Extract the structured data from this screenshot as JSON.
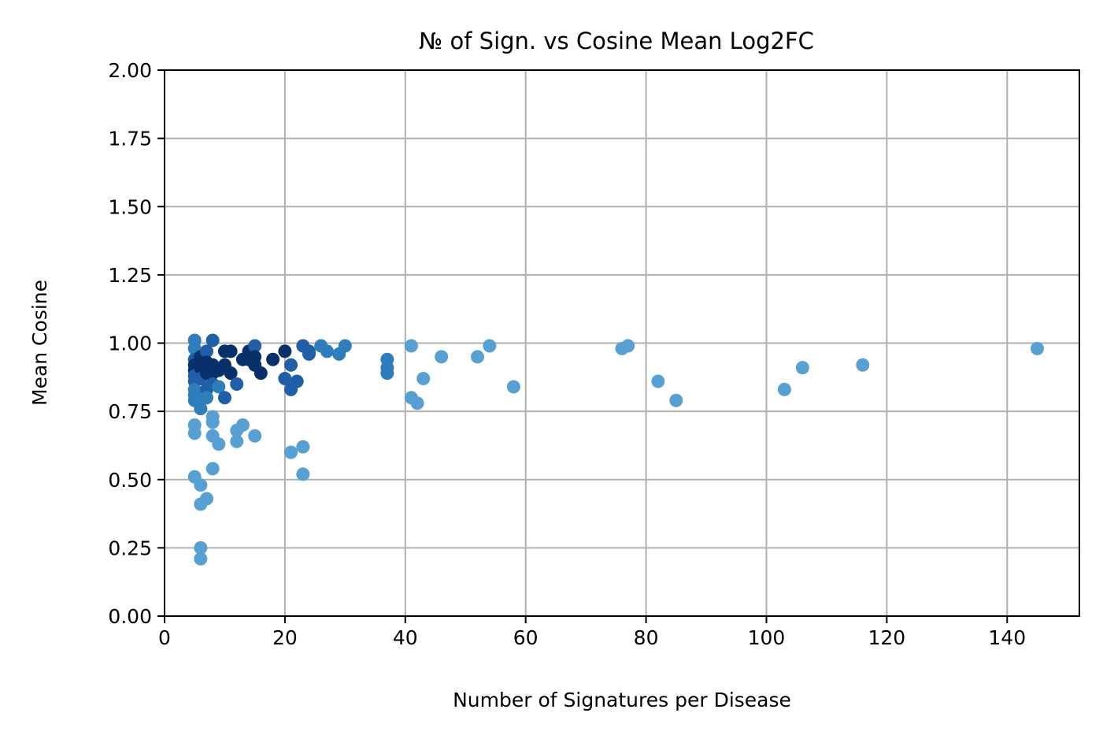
{
  "chart_data": {
    "type": "scatter",
    "title": "№ of Sign. vs Cosine Mean Log2FC",
    "xlabel": "Number of Signatures per Disease",
    "ylabel": "Mean Cosine",
    "xlim": [
      0,
      152
    ],
    "ylim": [
      0,
      2
    ],
    "xticks": [
      0,
      20,
      40,
      60,
      80,
      100,
      120,
      140
    ],
    "yticks": [
      0,
      0.25,
      0.5,
      0.75,
      1.0,
      1.25,
      1.5,
      1.75,
      2.0
    ],
    "ytick_labels": [
      "0.00",
      "0.25",
      "0.50",
      "0.75",
      "1.00",
      "1.25",
      "1.50",
      "1.75",
      "2.00"
    ],
    "grid": true,
    "colors": {
      "dark": "#08306b",
      "mid": "#1f5fa8",
      "medium": "#2e7ebc",
      "light": "#56a0d3"
    },
    "points": [
      {
        "x": 5,
        "y": 1.01,
        "c": "medium"
      },
      {
        "x": 5,
        "y": 0.98,
        "c": "medium"
      },
      {
        "x": 5,
        "y": 0.94,
        "c": "mid"
      },
      {
        "x": 5,
        "y": 0.92,
        "c": "dark"
      },
      {
        "x": 5,
        "y": 0.9,
        "c": "dark"
      },
      {
        "x": 5,
        "y": 0.88,
        "c": "mid"
      },
      {
        "x": 5,
        "y": 0.86,
        "c": "mid"
      },
      {
        "x": 5,
        "y": 0.83,
        "c": "medium"
      },
      {
        "x": 5,
        "y": 0.81,
        "c": "medium"
      },
      {
        "x": 5,
        "y": 0.79,
        "c": "medium"
      },
      {
        "x": 5,
        "y": 0.7,
        "c": "light"
      },
      {
        "x": 5,
        "y": 0.67,
        "c": "light"
      },
      {
        "x": 5,
        "y": 0.51,
        "c": "light"
      },
      {
        "x": 6,
        "y": 0.95,
        "c": "dark"
      },
      {
        "x": 6,
        "y": 0.91,
        "c": "dark"
      },
      {
        "x": 6,
        "y": 0.87,
        "c": "mid"
      },
      {
        "x": 6,
        "y": 0.76,
        "c": "medium"
      },
      {
        "x": 6,
        "y": 0.48,
        "c": "light"
      },
      {
        "x": 6,
        "y": 0.41,
        "c": "light"
      },
      {
        "x": 6,
        "y": 0.25,
        "c": "light"
      },
      {
        "x": 6,
        "y": 0.21,
        "c": "light"
      },
      {
        "x": 7,
        "y": 0.97,
        "c": "mid"
      },
      {
        "x": 7,
        "y": 0.93,
        "c": "dark"
      },
      {
        "x": 7,
        "y": 0.89,
        "c": "dark"
      },
      {
        "x": 7,
        "y": 0.83,
        "c": "mid"
      },
      {
        "x": 7,
        "y": 0.8,
        "c": "medium"
      },
      {
        "x": 7,
        "y": 0.43,
        "c": "light"
      },
      {
        "x": 8,
        "y": 1.01,
        "c": "mid"
      },
      {
        "x": 8,
        "y": 0.92,
        "c": "dark"
      },
      {
        "x": 8,
        "y": 0.89,
        "c": "dark"
      },
      {
        "x": 8,
        "y": 0.85,
        "c": "mid"
      },
      {
        "x": 8,
        "y": 0.73,
        "c": "light"
      },
      {
        "x": 8,
        "y": 0.71,
        "c": "light"
      },
      {
        "x": 8,
        "y": 0.66,
        "c": "light"
      },
      {
        "x": 8,
        "y": 0.54,
        "c": "light"
      },
      {
        "x": 9,
        "y": 0.9,
        "c": "dark"
      },
      {
        "x": 9,
        "y": 0.84,
        "c": "medium"
      },
      {
        "x": 9,
        "y": 0.63,
        "c": "light"
      },
      {
        "x": 10,
        "y": 0.97,
        "c": "dark"
      },
      {
        "x": 10,
        "y": 0.92,
        "c": "dark"
      },
      {
        "x": 10,
        "y": 0.8,
        "c": "mid"
      },
      {
        "x": 11,
        "y": 0.97,
        "c": "dark"
      },
      {
        "x": 11,
        "y": 0.89,
        "c": "dark"
      },
      {
        "x": 12,
        "y": 0.85,
        "c": "mid"
      },
      {
        "x": 12,
        "y": 0.68,
        "c": "light"
      },
      {
        "x": 12,
        "y": 0.64,
        "c": "light"
      },
      {
        "x": 13,
        "y": 0.94,
        "c": "dark"
      },
      {
        "x": 13,
        "y": 0.7,
        "c": "light"
      },
      {
        "x": 14,
        "y": 0.97,
        "c": "dark"
      },
      {
        "x": 14,
        "y": 0.94,
        "c": "dark"
      },
      {
        "x": 15,
        "y": 0.99,
        "c": "mid"
      },
      {
        "x": 15,
        "y": 0.95,
        "c": "dark"
      },
      {
        "x": 15,
        "y": 0.92,
        "c": "dark"
      },
      {
        "x": 15,
        "y": 0.66,
        "c": "light"
      },
      {
        "x": 16,
        "y": 0.89,
        "c": "dark"
      },
      {
        "x": 18,
        "y": 0.94,
        "c": "dark"
      },
      {
        "x": 20,
        "y": 0.97,
        "c": "dark"
      },
      {
        "x": 20,
        "y": 0.87,
        "c": "mid"
      },
      {
        "x": 21,
        "y": 0.92,
        "c": "mid"
      },
      {
        "x": 21,
        "y": 0.83,
        "c": "mid"
      },
      {
        "x": 21,
        "y": 0.6,
        "c": "light"
      },
      {
        "x": 22,
        "y": 0.86,
        "c": "mid"
      },
      {
        "x": 23,
        "y": 0.99,
        "c": "mid"
      },
      {
        "x": 23,
        "y": 0.62,
        "c": "light"
      },
      {
        "x": 23,
        "y": 0.52,
        "c": "light"
      },
      {
        "x": 24,
        "y": 0.97,
        "c": "mid"
      },
      {
        "x": 24,
        "y": 0.96,
        "c": "mid"
      },
      {
        "x": 26,
        "y": 0.99,
        "c": "medium"
      },
      {
        "x": 27,
        "y": 0.97,
        "c": "medium"
      },
      {
        "x": 29,
        "y": 0.96,
        "c": "medium"
      },
      {
        "x": 30,
        "y": 0.99,
        "c": "medium"
      },
      {
        "x": 37,
        "y": 0.94,
        "c": "medium"
      },
      {
        "x": 37,
        "y": 0.91,
        "c": "medium"
      },
      {
        "x": 37,
        "y": 0.89,
        "c": "medium"
      },
      {
        "x": 41,
        "y": 0.99,
        "c": "light"
      },
      {
        "x": 41,
        "y": 0.8,
        "c": "light"
      },
      {
        "x": 42,
        "y": 0.78,
        "c": "light"
      },
      {
        "x": 43,
        "y": 0.87,
        "c": "light"
      },
      {
        "x": 46,
        "y": 0.95,
        "c": "light"
      },
      {
        "x": 52,
        "y": 0.95,
        "c": "light"
      },
      {
        "x": 54,
        "y": 0.99,
        "c": "light"
      },
      {
        "x": 58,
        "y": 0.84,
        "c": "light"
      },
      {
        "x": 76,
        "y": 0.98,
        "c": "light"
      },
      {
        "x": 77,
        "y": 0.99,
        "c": "light"
      },
      {
        "x": 82,
        "y": 0.86,
        "c": "light"
      },
      {
        "x": 85,
        "y": 0.79,
        "c": "light"
      },
      {
        "x": 103,
        "y": 0.83,
        "c": "light"
      },
      {
        "x": 106,
        "y": 0.91,
        "c": "light"
      },
      {
        "x": 116,
        "y": 0.92,
        "c": "light"
      },
      {
        "x": 145,
        "y": 0.98,
        "c": "light"
      }
    ]
  }
}
